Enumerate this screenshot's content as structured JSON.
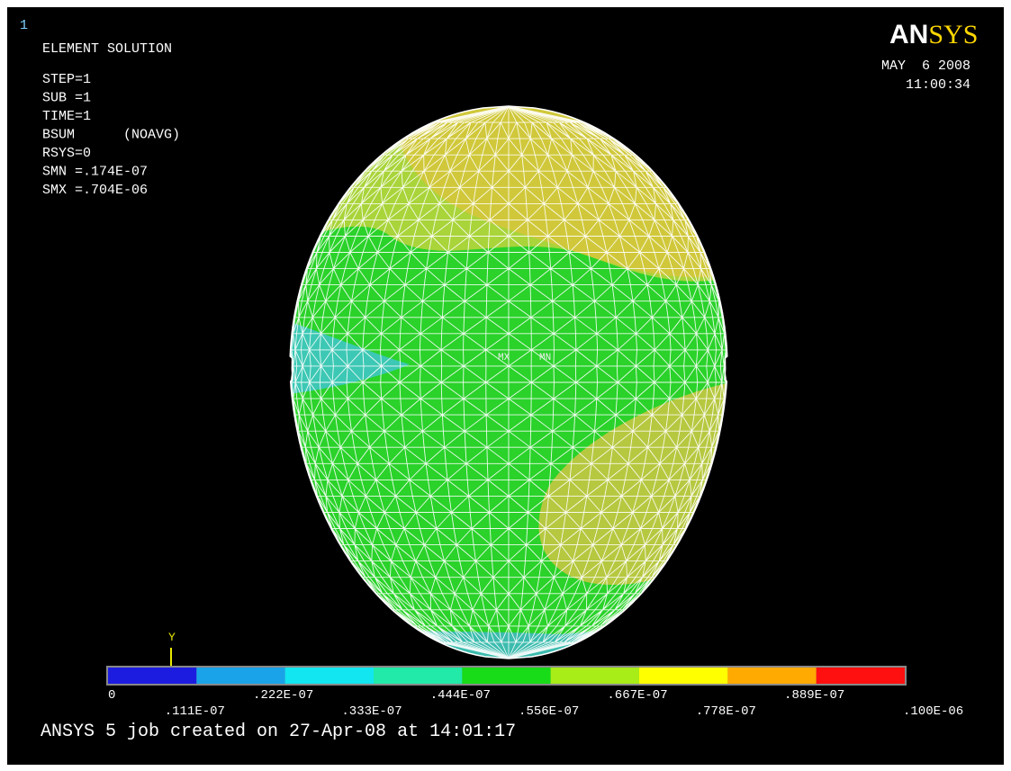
{
  "window_number": "1",
  "info": [
    "ELEMENT SOLUTION",
    "STEP=1",
    "SUB =1",
    "TIME=1",
    "BSUM      (NOAVG)",
    "RSYS=0",
    "SMN =.174E-07",
    "SMX =.704E-06"
  ],
  "logo": [
    "AN",
    "SYS"
  ],
  "date": "MAY  6 2008",
  "time": "11:00:34",
  "markers": [
    "MX",
    "MN"
  ],
  "axis_label": "Y",
  "legend": {
    "colors": [
      "#1c1ce0",
      "#1aa3e8",
      "#12e6f0",
      "#22eaa8",
      "#18dc18",
      "#a8ec18",
      "#ffff00",
      "#ffaa00",
      "#ff1010"
    ],
    "labels": [
      "0",
      ".111E-07",
      ".222E-07",
      ".333E-07",
      ".444E-07",
      ".556E-07",
      ".667E-07",
      ".778E-07",
      ".889E-07",
      ".100E-06"
    ]
  },
  "footer": "ANSYS 5 job created on 27-Apr-08 at 14:01:17"
}
